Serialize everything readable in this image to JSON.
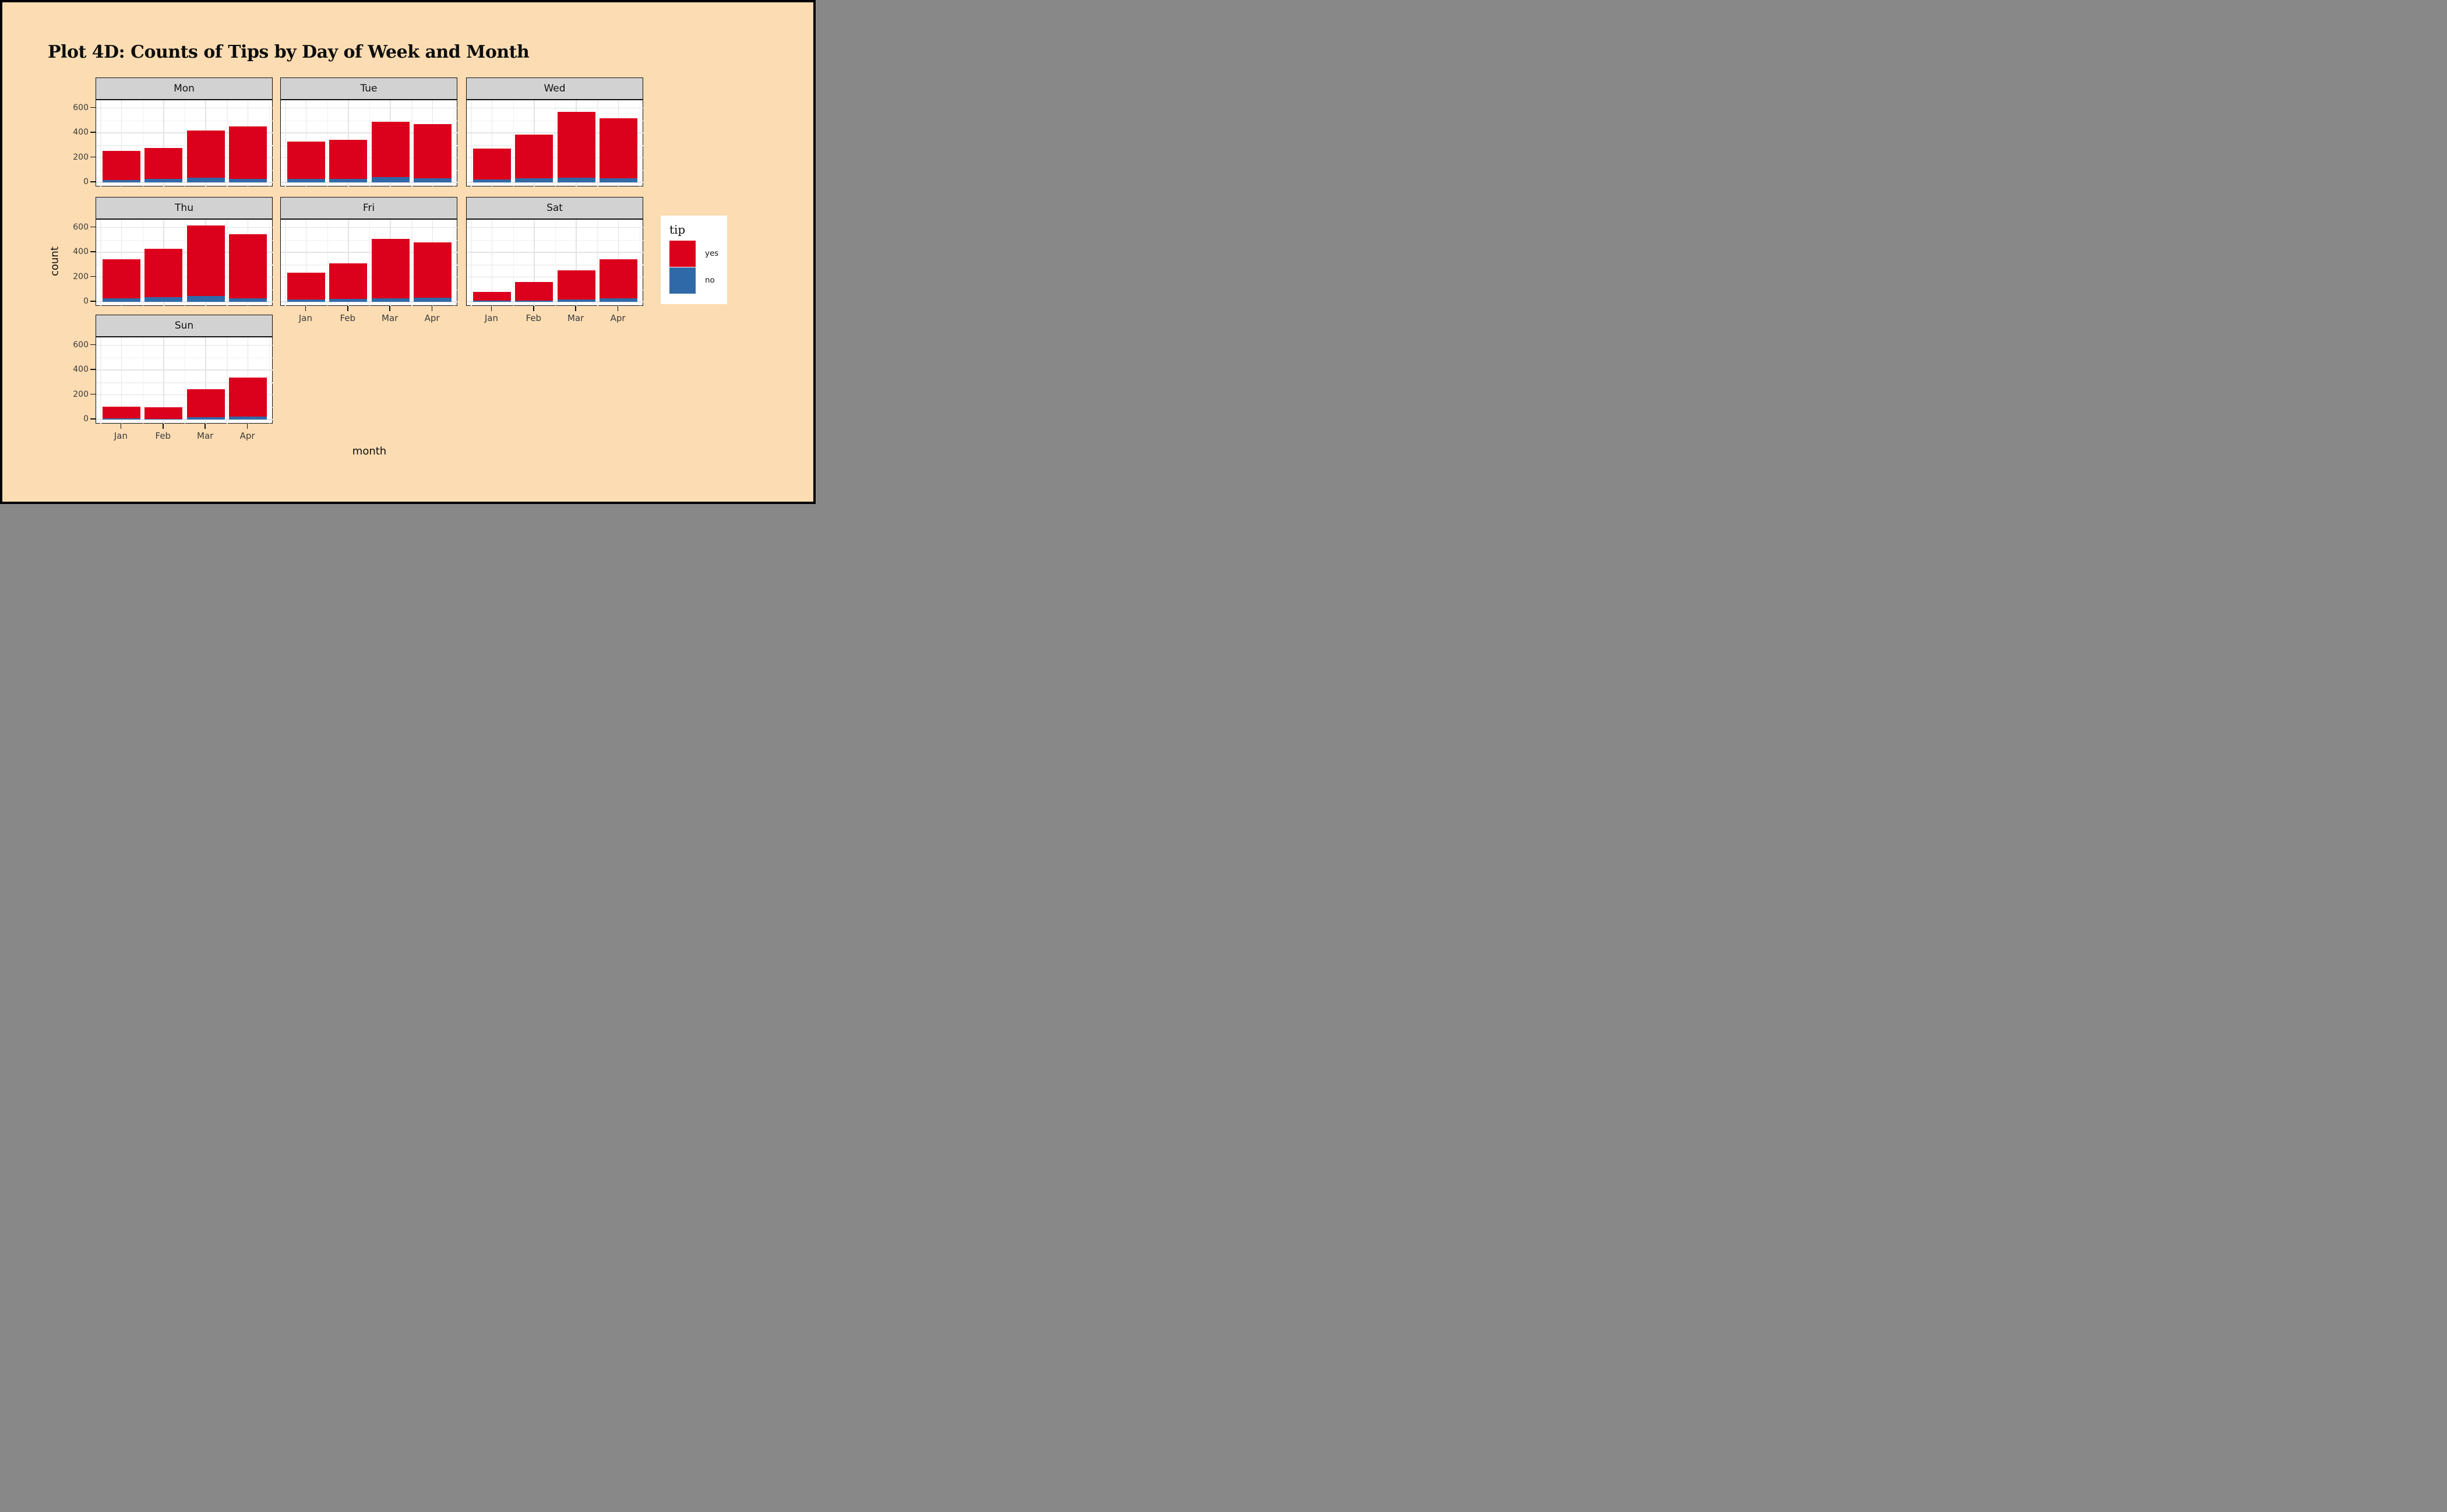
{
  "chart_data": {
    "type": "bar",
    "stacked": true,
    "title": "Plot 4D: Counts of Tips by Day of Week and Month",
    "xlabel": "month",
    "ylabel": "count",
    "categories": [
      "Jan",
      "Feb",
      "Mar",
      "Apr"
    ],
    "y_ticks": [
      "0",
      "200",
      "400",
      "600"
    ],
    "ylim": [
      0,
      660
    ],
    "grid": "on",
    "legend_position": "right",
    "legend_title": "tip",
    "legend_items": [
      {
        "label": "yes",
        "color": "#DB001C"
      },
      {
        "label": "no",
        "color": "#3069A8"
      }
    ],
    "facet_variable": "day of week",
    "facets": [
      {
        "day": "Mon",
        "series": [
          {
            "name": "yes",
            "values": [
              235,
              254,
              381,
              423
            ]
          },
          {
            "name": "no",
            "values": [
              20,
              26,
              39,
              27
            ]
          }
        ]
      },
      {
        "day": "Tue",
        "series": [
          {
            "name": "yes",
            "values": [
              302,
              317,
              446,
              439
            ]
          },
          {
            "name": "no",
            "values": [
              28,
              28,
              44,
              31
            ]
          }
        ]
      },
      {
        "day": "Wed",
        "series": [
          {
            "name": "yes",
            "values": [
              251,
              352,
              533,
              486
            ]
          },
          {
            "name": "no",
            "values": [
              24,
              33,
              37,
              34
            ]
          }
        ]
      },
      {
        "day": "Thu",
        "series": [
          {
            "name": "yes",
            "values": [
              316,
              394,
              569,
              517
            ]
          },
          {
            "name": "no",
            "values": [
              29,
              36,
              46,
              28
            ]
          }
        ]
      },
      {
        "day": "Fri",
        "series": [
          {
            "name": "yes",
            "values": [
              215,
              285,
              482,
              445
            ]
          },
          {
            "name": "no",
            "values": [
              20,
              25,
              28,
              35
            ]
          }
        ]
      },
      {
        "day": "Sat",
        "series": [
          {
            "name": "yes",
            "values": [
              70,
              150,
              235,
              317
            ]
          },
          {
            "name": "no",
            "values": [
              10,
              10,
              20,
              28
            ]
          }
        ]
      },
      {
        "day": "Sun",
        "series": [
          {
            "name": "yes",
            "values": [
              97,
              94,
              228,
              315
            ]
          },
          {
            "name": "no",
            "values": [
              8,
              6,
              17,
              25
            ]
          }
        ]
      }
    ],
    "colors": {
      "yes": "#DB001C",
      "no": "#3069A8",
      "background": "#FCDCB2",
      "panel_background": "#FFFFFF",
      "strip_background": "#D2D2D2",
      "grid_major": "#E4E4E4",
      "grid_minor": "#F1F1F1",
      "border": "#000000",
      "axis_text": "#3A3A3A"
    }
  }
}
